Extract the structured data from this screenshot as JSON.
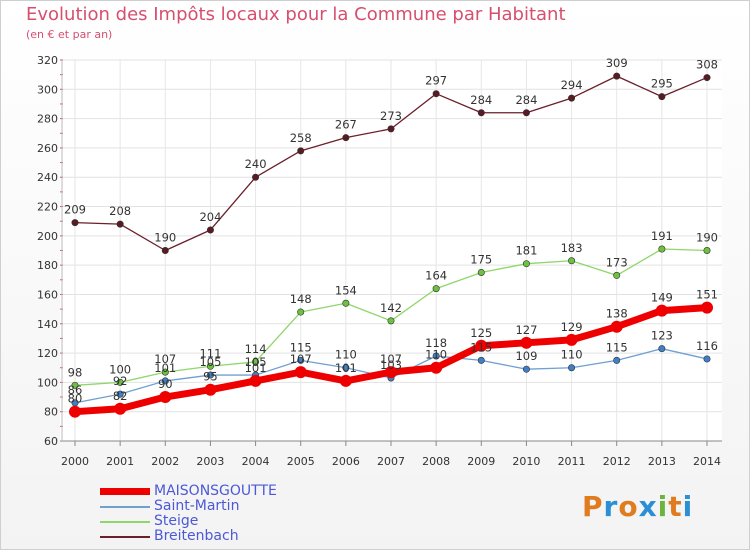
{
  "title": "Evolution des Impôts locaux pour la Commune par Habitant",
  "subtitle": "(en € et par an)",
  "logo": {
    "text": "Proxiti",
    "colors": [
      "#e07b1f",
      "#2a8fd4",
      "#e07b1f",
      "#2a8fd4",
      "#6db33f",
      "#e07b1f",
      "#2a8fd4"
    ]
  },
  "chart_data": {
    "type": "line",
    "x": [
      2000,
      2001,
      2002,
      2003,
      2004,
      2005,
      2006,
      2007,
      2008,
      2009,
      2010,
      2011,
      2012,
      2013,
      2014
    ],
    "ylim": [
      60,
      320
    ],
    "yticks": [
      60,
      80,
      100,
      120,
      140,
      160,
      180,
      200,
      220,
      240,
      260,
      280,
      300,
      320
    ],
    "grid": true,
    "legend_position": "bottom-left",
    "series": [
      {
        "name": "Breitenbach",
        "color": "#6b1f2a",
        "marker": "#5a1a22",
        "values": [
          209,
          208,
          190,
          204,
          240,
          258,
          267,
          273,
          297,
          284,
          284,
          294,
          309,
          295,
          308
        ]
      },
      {
        "name": "Steige",
        "color": "#8fd66b",
        "marker": "#6cc23f",
        "values": [
          98,
          100,
          107,
          111,
          114,
          148,
          154,
          142,
          164,
          175,
          181,
          183,
          173,
          191,
          190
        ]
      },
      {
        "name": "Saint-Martin",
        "color": "#6fa0d0",
        "marker": "#3f7fc8",
        "values": [
          86,
          92,
          101,
          105,
          105,
          115,
          110,
          103,
          118,
          115,
          109,
          110,
          115,
          123,
          116
        ]
      },
      {
        "name": "MAISONSGOUTTE",
        "color": "#ee0000",
        "marker": "#ee0000",
        "values": [
          80,
          82,
          90,
          95,
          101,
          107,
          101,
          107,
          110,
          125,
          127,
          129,
          138,
          149,
          151
        ]
      }
    ],
    "legend_order": [
      "MAISONSGOUTTE",
      "Saint-Martin",
      "Steige",
      "Breitenbach"
    ]
  }
}
